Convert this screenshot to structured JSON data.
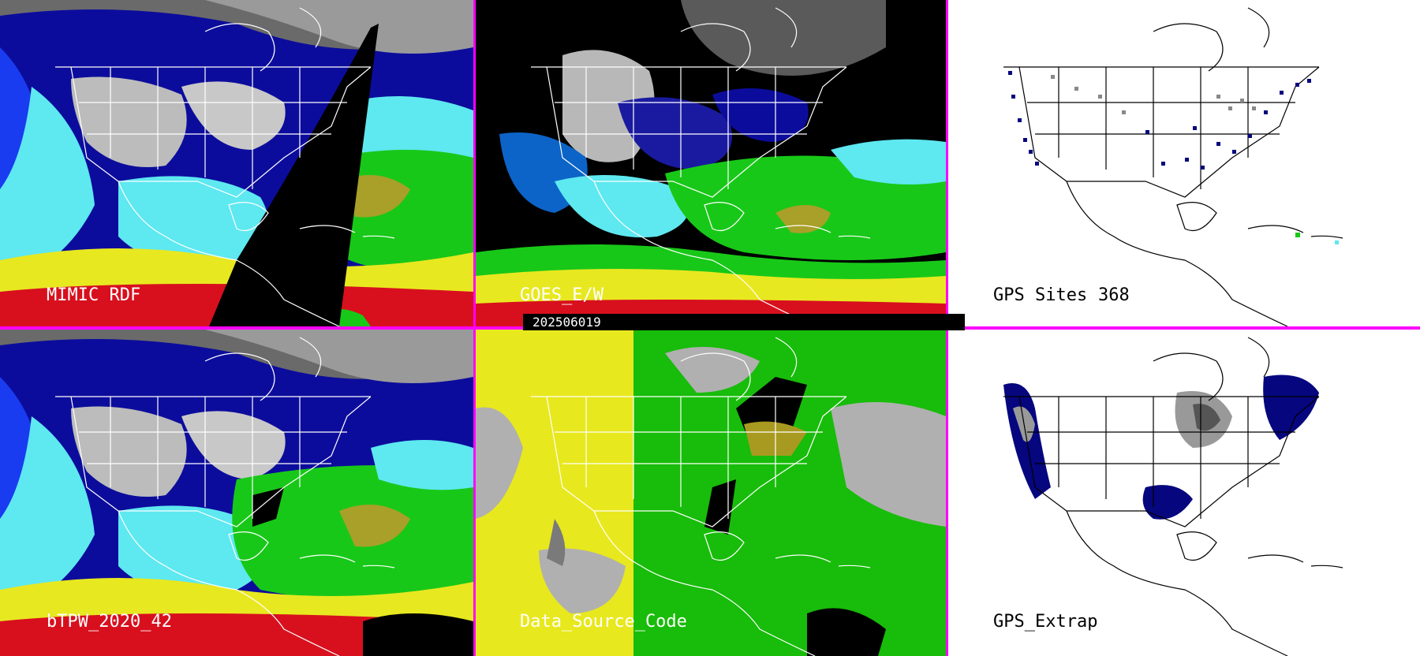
{
  "panels": [
    {
      "label": "MIMIC RDF"
    },
    {
      "label": "GOES_E/W"
    },
    {
      "label": "GPS Sites",
      "count": "368"
    },
    {
      "label": "bTPW_2020_42"
    },
    {
      "label": "Data_Source_Code"
    },
    {
      "label": "GPS_Extrap"
    }
  ],
  "timestamp": "202506019",
  "colors": {
    "divider": "#ff00ff",
    "background": "#000000",
    "dry_gray": "#a8a8a8",
    "moist_blue": "#0a14c8",
    "cyan": "#5ee8f0",
    "green": "#18c818",
    "yellow": "#e8e820",
    "red": "#d8101e",
    "source_gray": "#b0b0b0",
    "source_yellow": "#e8e81e",
    "source_green": "#18bc0a",
    "gps_navy": "#06067e"
  }
}
